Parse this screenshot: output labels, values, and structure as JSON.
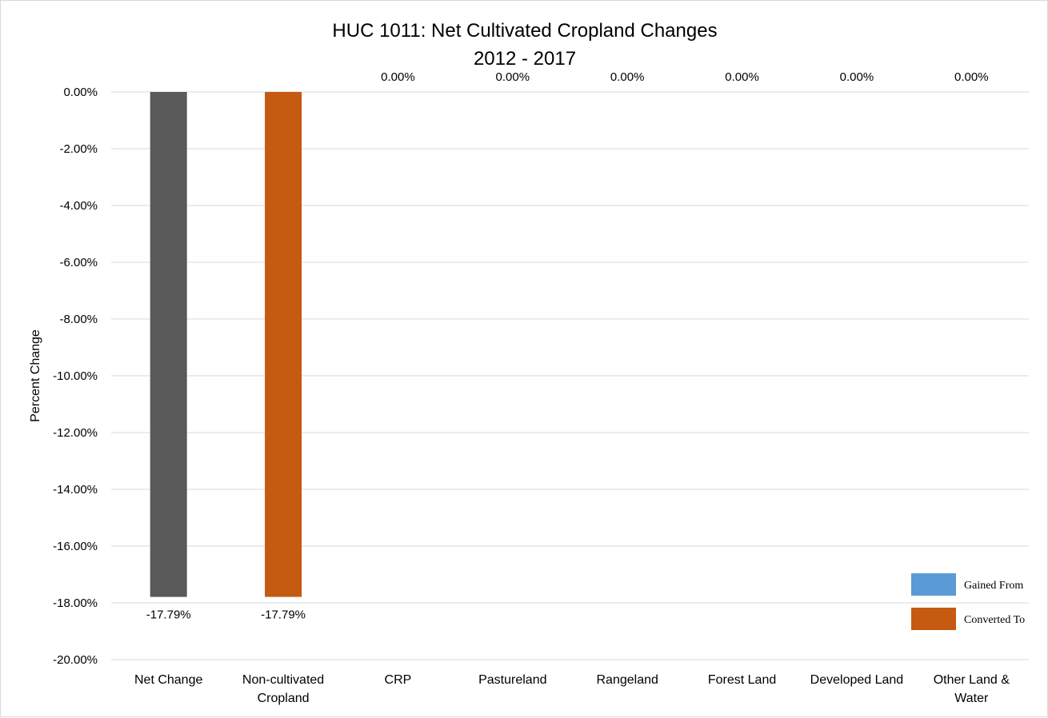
{
  "chart_data": {
    "type": "bar",
    "title": "HUC 1011: Net Cultivated Cropland Changes",
    "subtitle": "2012 - 2017",
    "xlabel": "",
    "ylabel": "Percent Change",
    "ylim": [
      -20,
      0
    ],
    "ytick_step": 2,
    "ytick_labels": [
      "0.00%",
      "-2.00%",
      "-4.00%",
      "-6.00%",
      "-8.00%",
      "-10.00%",
      "-12.00%",
      "-14.00%",
      "-16.00%",
      "-18.00%",
      "-20.00%"
    ],
    "grid": true,
    "categories": [
      [
        "Net Change"
      ],
      [
        "Non-cultivated",
        "Cropland"
      ],
      [
        "CRP"
      ],
      [
        "Pastureland"
      ],
      [
        "Rangeland"
      ],
      [
        "Forest Land"
      ],
      [
        "Developed Land"
      ],
      [
        "Other Land &",
        "Water"
      ]
    ],
    "values": [
      -17.79,
      -17.79,
      0,
      0,
      0,
      0,
      0,
      0
    ],
    "data_labels": [
      "-17.79%",
      "-17.79%",
      "0.00%",
      "0.00%",
      "0.00%",
      "0.00%",
      "0.00%",
      "0.00%"
    ],
    "bar_colors": [
      "#595959",
      "#c55a11",
      "#5b9bd5",
      "#5b9bd5",
      "#5b9bd5",
      "#5b9bd5",
      "#5b9bd5",
      "#5b9bd5"
    ],
    "legend": {
      "placement": "bottom-right",
      "entries": [
        {
          "label": "Gained From",
          "color": "#5b9bd5"
        },
        {
          "label": "Converted To",
          "color": "#c55a11"
        }
      ]
    }
  }
}
